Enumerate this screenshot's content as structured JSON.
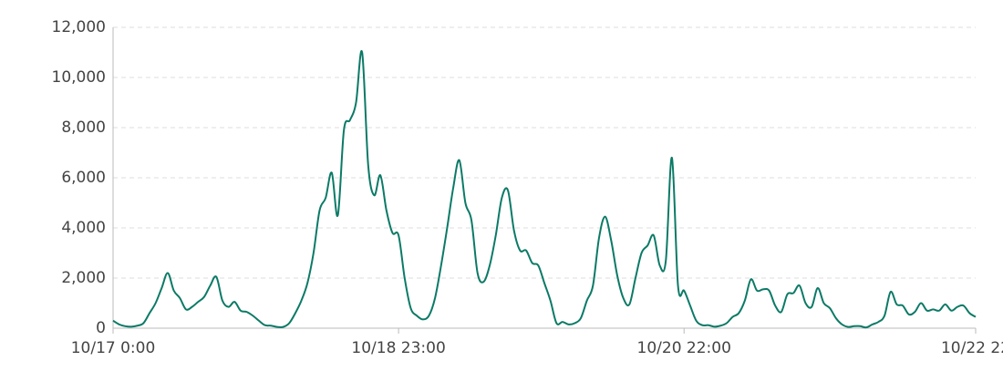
{
  "chart_data": {
    "type": "line",
    "categories": [
      "10/17 0:00",
      null,
      null,
      null,
      null,
      null,
      null,
      null,
      null,
      null,
      null,
      null,
      null,
      null,
      null,
      null,
      null,
      null,
      null,
      null,
      null,
      null,
      null,
      null,
      null,
      null,
      null,
      null,
      null,
      null,
      null,
      null,
      null,
      null,
      null,
      null,
      null,
      null,
      null,
      null,
      null,
      null,
      null,
      null,
      null,
      null,
      null,
      "10/18 23:00",
      null,
      null,
      null,
      null,
      null,
      null,
      null,
      null,
      null,
      null,
      null,
      null,
      null,
      null,
      null,
      null,
      null,
      null,
      null,
      null,
      null,
      null,
      null,
      null,
      null,
      null,
      null,
      null,
      null,
      null,
      null,
      null,
      null,
      null,
      null,
      null,
      null,
      null,
      null,
      null,
      null,
      null,
      null,
      null,
      null,
      null,
      "10/20 22:00",
      null,
      null,
      null,
      null,
      null,
      null,
      null,
      null,
      null,
      null,
      null,
      null,
      null,
      null,
      null,
      null,
      null,
      null,
      null,
      null,
      null,
      null,
      null,
      null,
      null,
      null,
      null,
      null,
      null,
      null,
      null,
      null,
      null,
      null,
      null,
      null,
      null,
      null,
      null,
      null,
      null,
      null,
      null,
      null,
      null,
      null,
      null,
      "10/22 22"
    ],
    "values": [
      300,
      150,
      80,
      60,
      100,
      200,
      600,
      1000,
      1600,
      2200,
      1500,
      1200,
      750,
      850,
      1050,
      1250,
      1700,
      2050,
      1100,
      850,
      1050,
      700,
      650,
      500,
      300,
      120,
      100,
      50,
      50,
      200,
      600,
      1100,
      1800,
      3000,
      4700,
      5200,
      6200,
      4500,
      7900,
      8300,
      9000,
      11000,
      6500,
      5300,
      6100,
      4700,
      3800,
      3700,
      2000,
      800,
      500,
      350,
      500,
      1200,
      2500,
      4000,
      5600,
      6700,
      5000,
      4300,
      2200,
      1850,
      2500,
      3700,
      5200,
      5500,
      3900,
      3100,
      3100,
      2600,
      2500,
      1800,
      1100,
      200,
      250,
      150,
      200,
      400,
      1100,
      1700,
      3600,
      4450,
      3500,
      2100,
      1200,
      950,
      2000,
      3000,
      3300,
      3700,
      2500,
      2700,
      6800,
      1700,
      1500,
      900,
      300,
      120,
      120,
      60,
      100,
      200,
      450,
      600,
      1100,
      1950,
      1500,
      1550,
      1500,
      900,
      650,
      1350,
      1400,
      1700,
      1000,
      850,
      1600,
      1000,
      800,
      400,
      150,
      50,
      80,
      80,
      30,
      150,
      250,
      500,
      1450,
      950,
      900,
      550,
      650,
      1000,
      700,
      750,
      700,
      950,
      700,
      850,
      900,
      600,
      450
    ],
    "color": "#0b7a66",
    "ylim": [
      0,
      12000
    ],
    "yticks": [
      0,
      {
        "value": 2000,
        "label": "2,000"
      },
      {
        "value": 4000,
        "label": "4,000"
      },
      {
        "value": 6000,
        "label": "6,000"
      },
      {
        "value": 8000,
        "label": "8,000"
      },
      {
        "value": 10000,
        "label": "10,000"
      },
      {
        "value": 12000,
        "label": "12,000"
      }
    ],
    "grid": true
  }
}
